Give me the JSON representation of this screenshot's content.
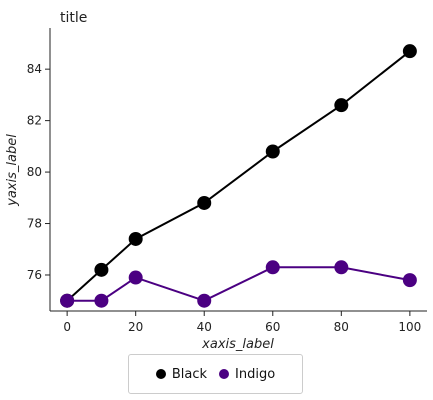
{
  "chart_data": {
    "type": "line",
    "title": "title",
    "xlabel": "xaxis_label",
    "ylabel": "yaxis_label",
    "xlim": [
      -5,
      105
    ],
    "ylim": [
      74.6,
      85.6
    ],
    "xticks": [
      0,
      20,
      40,
      60,
      80,
      100
    ],
    "yticks": [
      76,
      78,
      80,
      82,
      84
    ],
    "grid": false,
    "legend_position": "bottom",
    "series": [
      {
        "name": "Black",
        "color": "#000000",
        "x": [
          0,
          10,
          20,
          40,
          60,
          80,
          100
        ],
        "y": [
          75.0,
          76.2,
          77.4,
          78.8,
          80.8,
          82.6,
          84.7
        ]
      },
      {
        "name": "Indigo",
        "color": "#4b0082",
        "x": [
          0,
          10,
          20,
          40,
          60,
          80,
          100
        ],
        "y": [
          75.0,
          75.0,
          75.9,
          75.0,
          76.3,
          76.3,
          75.8
        ]
      }
    ]
  }
}
